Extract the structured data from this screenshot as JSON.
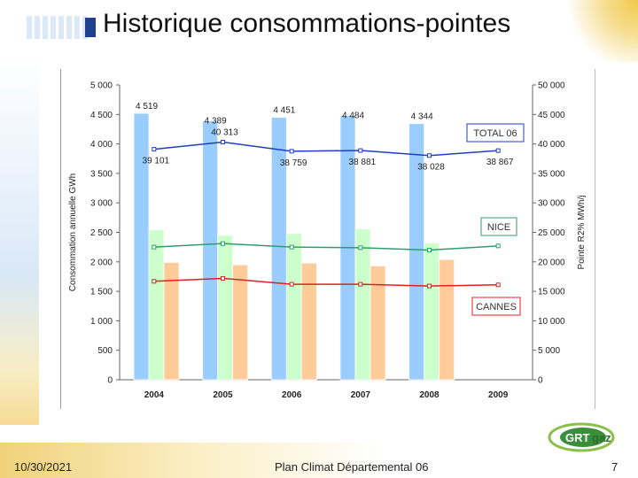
{
  "slide": {
    "title": "Historique consommations-pointes",
    "date": "10/30/2021",
    "footer_center": "Plan Climat Départemental 06",
    "page_number": "7",
    "logo_text_a": "GRT",
    "logo_text_b": "gaz"
  },
  "colors": {
    "total_bar": "#99ccff",
    "nice_bar": "#ccffcc",
    "cannes_bar": "#ffcc99",
    "total_line": "#1f3fbf",
    "nice_line": "#2e9e6e",
    "cannes_line": "#e02020",
    "logo_green": "#3a8f3a"
  },
  "chart_data": {
    "type": "bar",
    "categories": [
      "2004",
      "2005",
      "2006",
      "2007",
      "2008",
      "2009"
    ],
    "ylabel": "Consommation annuelle GWh",
    "y2label": "Pointe R2% MWh/j",
    "ylim": [
      0,
      5000
    ],
    "y2lim": [
      0,
      50000
    ],
    "yticks": [
      "0",
      "500",
      "1 000",
      "1 500",
      "2 000",
      "2 500",
      "3 000",
      "3 500",
      "4 000",
      "4 500",
      "5 000"
    ],
    "y2ticks": [
      "0",
      "5 000",
      "10 000",
      "15 000",
      "20 000",
      "25 000",
      "30 000",
      "35 000",
      "40 000",
      "45 000",
      "50 000"
    ],
    "grid": false,
    "bar_series": [
      {
        "key": "total",
        "values": [
          4519,
          4389,
          4451,
          4484,
          4344,
          null
        ],
        "labels": [
          "4 519",
          "4 389",
          "4 451",
          "4 484",
          "4 344",
          ""
        ]
      },
      {
        "key": "nice",
        "values": [
          2540,
          2450,
          2480,
          2560,
          2320,
          null
        ]
      },
      {
        "key": "cannes",
        "values": [
          1990,
          1950,
          1980,
          1930,
          2040,
          null
        ]
      }
    ],
    "line_series": [
      {
        "key": "total",
        "name": "TOTAL 06",
        "values": [
          39101,
          40313,
          38759,
          38881,
          38028,
          38867
        ],
        "labels": [
          "39 101",
          "40 313",
          "38 759",
          "38 881",
          "38 028",
          "38 867"
        ]
      },
      {
        "key": "nice",
        "name": "NICE",
        "values": [
          22500,
          23100,
          22500,
          22400,
          22000,
          22700
        ]
      },
      {
        "key": "cannes",
        "name": "CANNES",
        "values": [
          16700,
          17200,
          16200,
          16200,
          15900,
          16100
        ]
      }
    ]
  }
}
